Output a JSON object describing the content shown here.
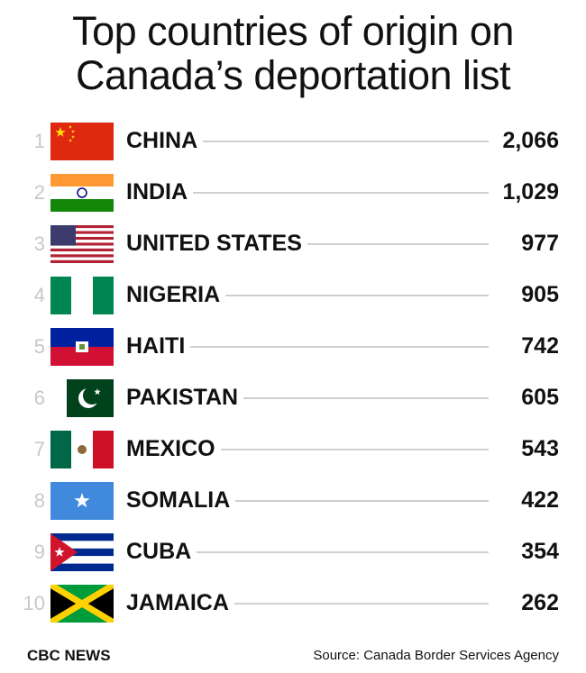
{
  "header": {
    "title": "Top countries of origin on Canada’s deportation list"
  },
  "rows": [
    {
      "rank": "1",
      "country": "CHINA",
      "value": "2,066"
    },
    {
      "rank": "2",
      "country": "INDIA",
      "value": "1,029"
    },
    {
      "rank": "3",
      "country": "UNITED STATES",
      "value": "977"
    },
    {
      "rank": "4",
      "country": "NIGERIA",
      "value": "905"
    },
    {
      "rank": "5",
      "country": "HAITI",
      "value": "742"
    },
    {
      "rank": "6",
      "country": "PAKISTAN",
      "value": "605"
    },
    {
      "rank": "7",
      "country": "MEXICO",
      "value": "543"
    },
    {
      "rank": "8",
      "country": "SOMALIA",
      "value": "422"
    },
    {
      "rank": "9",
      "country": "CUBA",
      "value": "354"
    },
    {
      "rank": "10",
      "country": "JAMAICA",
      "value": "262"
    }
  ],
  "footer": {
    "brand": "CBC NEWS",
    "source": "Source: Canada Border Services Agency"
  }
}
